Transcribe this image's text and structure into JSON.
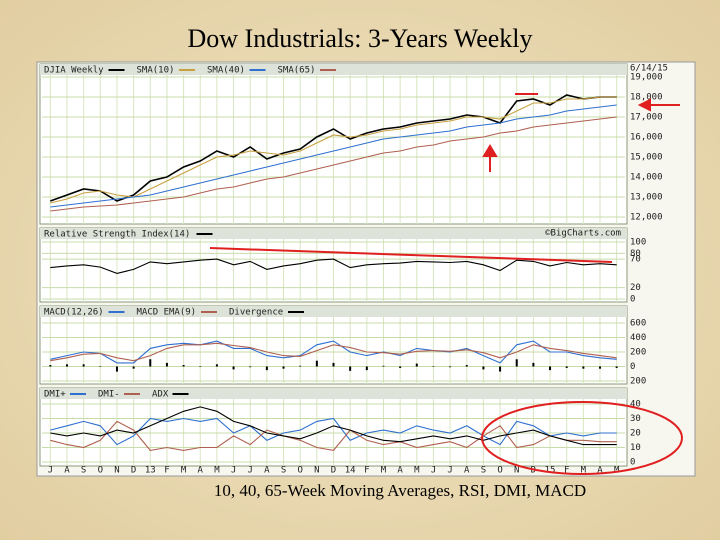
{
  "title": "Dow Industrials: 3-Years Weekly",
  "caption": "10, 40, 65-Week Moving Averages, RSI, DMI, MACD",
  "chart_data": [
    {
      "type": "line",
      "date": "6/14/15",
      "ylim": [
        12000,
        19000
      ],
      "yticks": [
        {
          "value": 12000,
          "label": "12,000"
        },
        {
          "value": 13000,
          "label": "13,000"
        },
        {
          "value": 14000,
          "label": "14,000"
        },
        {
          "value": 15000,
          "label": "15,000"
        },
        {
          "value": 16000,
          "label": "16,000"
        },
        {
          "value": 17000,
          "label": "17,000"
        },
        {
          "value": 18000,
          "label": "18,000"
        },
        {
          "value": 19000,
          "label": "19,000"
        }
      ],
      "series": [
        {
          "name": "DJIA Weekly",
          "color": "#000000",
          "values": [
            12800,
            13100,
            13400,
            13300,
            12800,
            13100,
            13800,
            14000,
            14500,
            14800,
            15300,
            15000,
            15500,
            14900,
            15200,
            15400,
            16000,
            16400,
            15900,
            16200,
            16400,
            16500,
            16700,
            16800,
            16900,
            17100,
            17000,
            16700,
            17800,
            17900,
            17600,
            18100,
            17900,
            18000,
            18000
          ]
        },
        {
          "name": "SMA(10)",
          "color": "#c8a040",
          "values": [
            12700,
            12900,
            13200,
            13300,
            13100,
            13000,
            13400,
            13800,
            14200,
            14600,
            15000,
            15100,
            15300,
            15200,
            15100,
            15300,
            15700,
            16100,
            16000,
            16100,
            16300,
            16400,
            16600,
            16700,
            16800,
            17000,
            17000,
            16900,
            17300,
            17700,
            17700,
            17900,
            17900,
            18000,
            18000
          ]
        },
        {
          "name": "SMA(40)",
          "color": "#3070d0",
          "values": [
            12500,
            12600,
            12700,
            12800,
            12900,
            13000,
            13100,
            13300,
            13500,
            13700,
            13900,
            14100,
            14300,
            14500,
            14700,
            14900,
            15100,
            15300,
            15500,
            15700,
            15900,
            16000,
            16100,
            16200,
            16300,
            16500,
            16600,
            16700,
            16900,
            17000,
            17100,
            17300,
            17400,
            17500,
            17600
          ]
        },
        {
          "name": "SMA(65)",
          "color": "#b06050",
          "values": [
            12300,
            12400,
            12500,
            12550,
            12600,
            12700,
            12800,
            12900,
            13000,
            13200,
            13400,
            13500,
            13700,
            13900,
            14000,
            14200,
            14400,
            14600,
            14800,
            15000,
            15200,
            15300,
            15500,
            15600,
            15800,
            15900,
            16000,
            16200,
            16300,
            16500,
            16600,
            16700,
            16800,
            16900,
            17000
          ]
        }
      ]
    },
    {
      "type": "line",
      "watermark": "©BigCharts.com",
      "ylim": [
        0,
        100
      ],
      "yticks": [
        0,
        20,
        70,
        80,
        100
      ],
      "series": [
        {
          "name": "Relative Strength Index(14)",
          "color": "#000000",
          "values": [
            55,
            58,
            60,
            56,
            45,
            52,
            65,
            62,
            65,
            68,
            70,
            60,
            66,
            52,
            58,
            62,
            68,
            70,
            55,
            60,
            62,
            63,
            66,
            65,
            64,
            66,
            60,
            50,
            68,
            66,
            58,
            64,
            60,
            62,
            60
          ]
        }
      ]
    },
    {
      "type": "line",
      "ylim": [
        -200,
        600
      ],
      "yticks": [
        {
          "value": -200,
          "label": "200"
        },
        0,
        200,
        400,
        600
      ],
      "series": [
        {
          "name": "MACD(12,26)",
          "color": "#3070d0",
          "values": [
            100,
            150,
            200,
            180,
            50,
            50,
            250,
            300,
            320,
            300,
            350,
            250,
            250,
            150,
            120,
            150,
            300,
            350,
            200,
            150,
            200,
            150,
            250,
            220,
            200,
            250,
            150,
            50,
            300,
            350,
            200,
            200,
            150,
            120,
            100
          ]
        },
        {
          "name": "MACD EMA(9)",
          "color": "#b06050",
          "values": [
            80,
            120,
            170,
            180,
            120,
            80,
            150,
            250,
            300,
            300,
            320,
            290,
            260,
            200,
            150,
            140,
            220,
            300,
            260,
            200,
            190,
            170,
            210,
            220,
            210,
            230,
            190,
            120,
            200,
            300,
            250,
            220,
            180,
            150,
            120
          ]
        },
        {
          "name": "Divergence",
          "color": "#000000",
          "style": "bar",
          "values": [
            20,
            30,
            30,
            0,
            -70,
            -30,
            100,
            50,
            20,
            0,
            30,
            -40,
            -10,
            -50,
            -30,
            10,
            80,
            50,
            -60,
            -50,
            10,
            -20,
            40,
            0,
            -10,
            20,
            -40,
            -70,
            100,
            50,
            -50,
            -20,
            -30,
            -30,
            -20
          ]
        }
      ]
    },
    {
      "type": "line",
      "categories": [
        "J",
        "A",
        "S",
        "O",
        "N",
        "D",
        "13",
        "F",
        "M",
        "A",
        "M",
        "J",
        "J",
        "A",
        "S",
        "O",
        "N",
        "D",
        "14",
        "F",
        "M",
        "A",
        "M",
        "J",
        "J",
        "A",
        "S",
        "O",
        "N",
        "D",
        "15",
        "F",
        "M",
        "A",
        "M"
      ],
      "ylim": [
        0,
        40
      ],
      "yticks": [
        0,
        10,
        20,
        30,
        40
      ],
      "series": [
        {
          "name": "DMI+",
          "color": "#3070d0",
          "values": [
            22,
            25,
            28,
            25,
            12,
            18,
            30,
            28,
            30,
            28,
            30,
            20,
            25,
            15,
            20,
            22,
            28,
            30,
            15,
            20,
            22,
            20,
            25,
            22,
            20,
            25,
            18,
            12,
            28,
            25,
            18,
            20,
            18,
            20,
            20
          ]
        },
        {
          "name": "DMI-",
          "color": "#b06050",
          "values": [
            15,
            12,
            10,
            15,
            28,
            22,
            8,
            10,
            8,
            10,
            10,
            18,
            12,
            22,
            18,
            15,
            10,
            8,
            22,
            15,
            12,
            14,
            10,
            12,
            14,
            10,
            18,
            25,
            10,
            12,
            18,
            15,
            15,
            14,
            14
          ]
        },
        {
          "name": "ADX",
          "color": "#000000",
          "values": [
            20,
            18,
            20,
            18,
            22,
            20,
            25,
            30,
            35,
            38,
            35,
            28,
            25,
            20,
            18,
            16,
            20,
            25,
            22,
            18,
            15,
            14,
            16,
            18,
            16,
            18,
            15,
            18,
            20,
            22,
            18,
            15,
            12,
            12,
            12
          ]
        }
      ]
    }
  ]
}
